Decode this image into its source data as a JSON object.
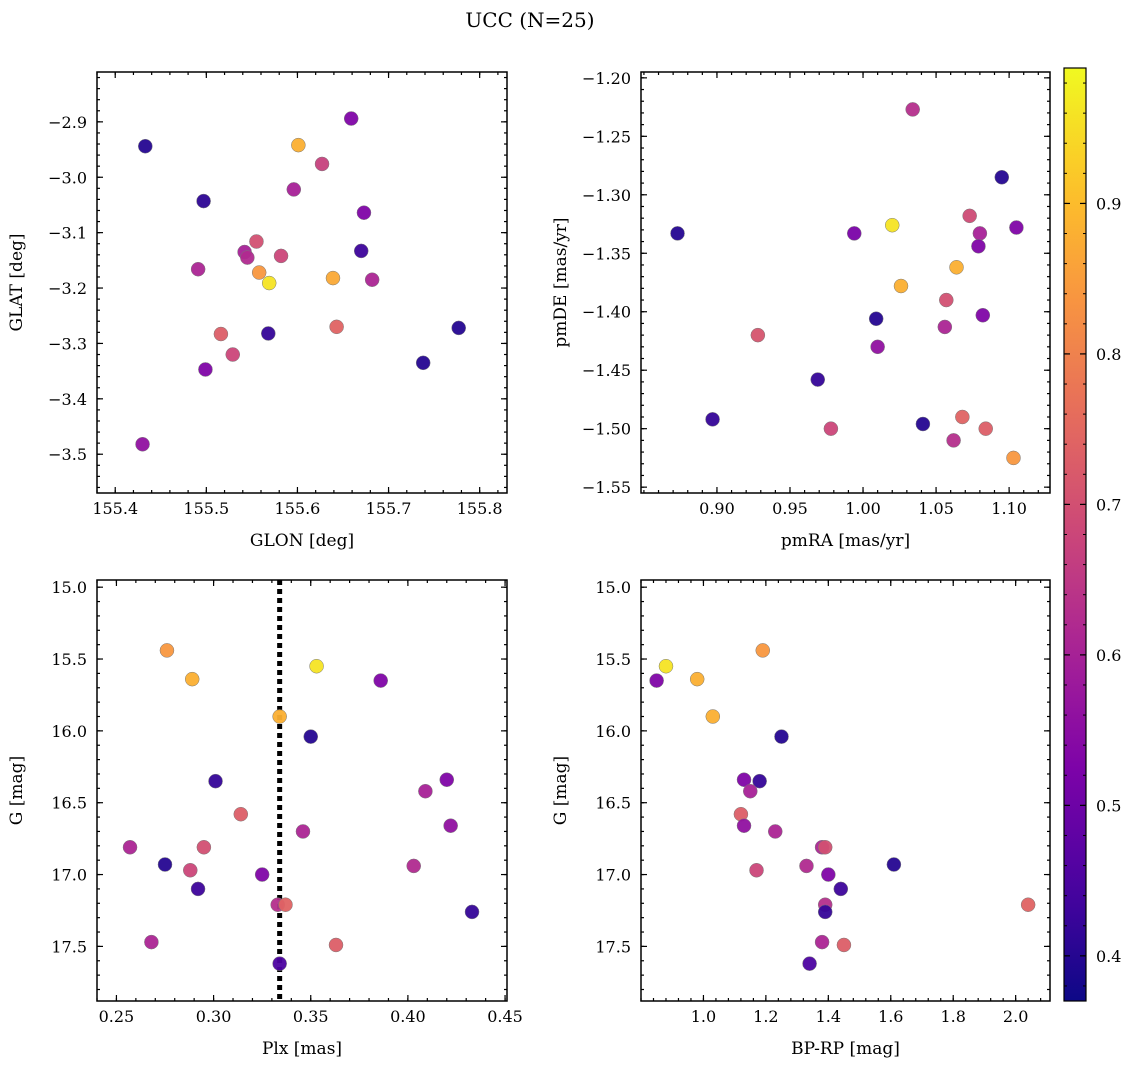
{
  "figure": {
    "title": "UCC (N=25)"
  },
  "colorbar": {
    "cmap": "plasma",
    "range": [
      0.37,
      0.99
    ],
    "ticks": [
      "0.4",
      "0.5",
      "0.6",
      "0.7",
      "0.8",
      "0.9"
    ]
  },
  "chart_data": [
    {
      "type": "scatter",
      "panel": "top-left",
      "xlabel": "GLON [deg]",
      "ylabel": "GLAT [deg]",
      "xlim": [
        155.38,
        155.83
      ],
      "ylim": [
        -3.57,
        -2.81
      ],
      "xticks": [
        "155.4",
        "155.5",
        "155.6",
        "155.7",
        "155.8"
      ],
      "yticks": [
        "-2.9",
        "-3.0",
        "-3.1",
        "-3.2",
        "-3.3",
        "-3.4",
        "-3.5"
      ],
      "points": [
        {
          "x": 155.433,
          "y": -2.944,
          "c": 0.4
        },
        {
          "x": 155.497,
          "y": -3.043,
          "c": 0.41
        },
        {
          "x": 155.659,
          "y": -2.894,
          "c": 0.53
        },
        {
          "x": 155.601,
          "y": -2.942,
          "c": 0.88
        },
        {
          "x": 155.627,
          "y": -2.976,
          "c": 0.67
        },
        {
          "x": 155.596,
          "y": -3.022,
          "c": 0.6
        },
        {
          "x": 155.673,
          "y": -3.064,
          "c": 0.53
        },
        {
          "x": 155.542,
          "y": -3.135,
          "c": 0.6
        },
        {
          "x": 155.545,
          "y": -3.145,
          "c": 0.62
        },
        {
          "x": 155.555,
          "y": -3.116,
          "c": 0.7
        },
        {
          "x": 155.582,
          "y": -3.142,
          "c": 0.68
        },
        {
          "x": 155.67,
          "y": -3.133,
          "c": 0.43
        },
        {
          "x": 155.491,
          "y": -3.166,
          "c": 0.61
        },
        {
          "x": 155.558,
          "y": -3.172,
          "c": 0.84
        },
        {
          "x": 155.569,
          "y": -3.191,
          "c": 0.96
        },
        {
          "x": 155.639,
          "y": -3.182,
          "c": 0.87
        },
        {
          "x": 155.682,
          "y": -3.185,
          "c": 0.61
        },
        {
          "x": 155.516,
          "y": -3.283,
          "c": 0.73
        },
        {
          "x": 155.568,
          "y": -3.282,
          "c": 0.42
        },
        {
          "x": 155.643,
          "y": -3.27,
          "c": 0.74
        },
        {
          "x": 155.777,
          "y": -3.272,
          "c": 0.4
        },
        {
          "x": 155.529,
          "y": -3.32,
          "c": 0.68
        },
        {
          "x": 155.499,
          "y": -3.347,
          "c": 0.53
        },
        {
          "x": 155.738,
          "y": -3.335,
          "c": 0.4
        },
        {
          "x": 155.43,
          "y": -3.482,
          "c": 0.56
        }
      ]
    },
    {
      "type": "scatter",
      "panel": "top-right",
      "xlabel": "pmRA [mas/yr]",
      "ylabel": "pmDE [mas/yr]",
      "xlim": [
        0.848,
        1.128
      ],
      "ylim": [
        -1.555,
        -1.195
      ],
      "xticks": [
        "0.90",
        "0.95",
        "1.00",
        "1.05",
        "1.10"
      ],
      "yticks": [
        "-1.20",
        "-1.25",
        "-1.30",
        "-1.35",
        "-1.40",
        "-1.45",
        "-1.50",
        "-1.55"
      ],
      "points": [
        {
          "x": 1.034,
          "y": -1.227,
          "c": 0.63
        },
        {
          "x": 1.095,
          "y": -1.285,
          "c": 0.4
        },
        {
          "x": 0.873,
          "y": -1.333,
          "c": 0.4
        },
        {
          "x": 1.02,
          "y": -1.326,
          "c": 0.96
        },
        {
          "x": 1.073,
          "y": -1.318,
          "c": 0.69
        },
        {
          "x": 0.994,
          "y": -1.333,
          "c": 0.52
        },
        {
          "x": 1.08,
          "y": -1.333,
          "c": 0.6
        },
        {
          "x": 1.105,
          "y": -1.328,
          "c": 0.53
        },
        {
          "x": 1.079,
          "y": -1.344,
          "c": 0.53
        },
        {
          "x": 1.064,
          "y": -1.362,
          "c": 0.88
        },
        {
          "x": 1.026,
          "y": -1.378,
          "c": 0.88
        },
        {
          "x": 1.057,
          "y": -1.39,
          "c": 0.7
        },
        {
          "x": 1.009,
          "y": -1.406,
          "c": 0.4
        },
        {
          "x": 1.082,
          "y": -1.403,
          "c": 0.53
        },
        {
          "x": 1.056,
          "y": -1.413,
          "c": 0.61
        },
        {
          "x": 0.928,
          "y": -1.42,
          "c": 0.71
        },
        {
          "x": 1.01,
          "y": -1.43,
          "c": 0.56
        },
        {
          "x": 0.969,
          "y": -1.458,
          "c": 0.42
        },
        {
          "x": 0.897,
          "y": -1.492,
          "c": 0.42
        },
        {
          "x": 1.068,
          "y": -1.49,
          "c": 0.74
        },
        {
          "x": 1.041,
          "y": -1.496,
          "c": 0.4
        },
        {
          "x": 0.978,
          "y": -1.5,
          "c": 0.68
        },
        {
          "x": 1.084,
          "y": -1.5,
          "c": 0.73
        },
        {
          "x": 1.062,
          "y": -1.51,
          "c": 0.63
        },
        {
          "x": 1.103,
          "y": -1.525,
          "c": 0.84
        }
      ]
    },
    {
      "type": "scatter",
      "panel": "bottom-left",
      "xlabel": "Plx [mas]",
      "ylabel": "G [mag]",
      "xlim": [
        0.24,
        0.451
      ],
      "ylim": [
        17.88,
        14.95
      ],
      "xticks": [
        "0.25",
        "0.30",
        "0.35",
        "0.40",
        "0.45"
      ],
      "yticks": [
        "15.0",
        "15.5",
        "16.0",
        "16.5",
        "17.0",
        "17.5"
      ],
      "vline": {
        "x": 0.334,
        "style": "dotted",
        "color": "#000000"
      },
      "points": [
        {
          "x": 0.276,
          "y": 15.44,
          "c": 0.84
        },
        {
          "x": 0.289,
          "y": 15.64,
          "c": 0.88
        },
        {
          "x": 0.353,
          "y": 15.55,
          "c": 0.96
        },
        {
          "x": 0.386,
          "y": 15.65,
          "c": 0.53
        },
        {
          "x": 0.334,
          "y": 15.9,
          "c": 0.88
        },
        {
          "x": 0.35,
          "y": 16.04,
          "c": 0.4
        },
        {
          "x": 0.301,
          "y": 16.35,
          "c": 0.42
        },
        {
          "x": 0.42,
          "y": 16.34,
          "c": 0.53
        },
        {
          "x": 0.409,
          "y": 16.42,
          "c": 0.6
        },
        {
          "x": 0.314,
          "y": 16.58,
          "c": 0.73
        },
        {
          "x": 0.422,
          "y": 16.66,
          "c": 0.56
        },
        {
          "x": 0.346,
          "y": 16.7,
          "c": 0.61
        },
        {
          "x": 0.257,
          "y": 16.81,
          "c": 0.61
        },
        {
          "x": 0.295,
          "y": 16.81,
          "c": 0.7
        },
        {
          "x": 0.275,
          "y": 16.93,
          "c": 0.4
        },
        {
          "x": 0.288,
          "y": 16.97,
          "c": 0.68
        },
        {
          "x": 0.403,
          "y": 16.94,
          "c": 0.62
        },
        {
          "x": 0.325,
          "y": 17.0,
          "c": 0.53
        },
        {
          "x": 0.292,
          "y": 17.1,
          "c": 0.43
        },
        {
          "x": 0.333,
          "y": 17.21,
          "c": 0.63
        },
        {
          "x": 0.337,
          "y": 17.21,
          "c": 0.74
        },
        {
          "x": 0.433,
          "y": 17.26,
          "c": 0.42
        },
        {
          "x": 0.268,
          "y": 17.47,
          "c": 0.61
        },
        {
          "x": 0.363,
          "y": 17.49,
          "c": 0.73
        },
        {
          "x": 0.334,
          "y": 17.62,
          "c": 0.45
        }
      ]
    },
    {
      "type": "scatter",
      "panel": "bottom-right",
      "xlabel": "BP-RP [mag]",
      "ylabel": "G [mag]",
      "xlim": [
        0.8,
        2.11
      ],
      "ylim": [
        17.88,
        14.95
      ],
      "xticks": [
        "1.0",
        "1.2",
        "1.4",
        "1.6",
        "1.8",
        "2.0"
      ],
      "yticks": [
        "15.0",
        "15.5",
        "16.0",
        "16.5",
        "17.0",
        "17.5"
      ],
      "points": [
        {
          "x": 0.88,
          "y": 15.55,
          "c": 0.96
        },
        {
          "x": 0.85,
          "y": 15.65,
          "c": 0.53
        },
        {
          "x": 0.98,
          "y": 15.64,
          "c": 0.88
        },
        {
          "x": 1.19,
          "y": 15.44,
          "c": 0.84
        },
        {
          "x": 1.03,
          "y": 15.9,
          "c": 0.88
        },
        {
          "x": 1.25,
          "y": 16.04,
          "c": 0.4
        },
        {
          "x": 1.13,
          "y": 16.34,
          "c": 0.53
        },
        {
          "x": 1.18,
          "y": 16.35,
          "c": 0.42
        },
        {
          "x": 1.15,
          "y": 16.42,
          "c": 0.6
        },
        {
          "x": 1.12,
          "y": 16.58,
          "c": 0.73
        },
        {
          "x": 1.13,
          "y": 16.66,
          "c": 0.56
        },
        {
          "x": 1.23,
          "y": 16.7,
          "c": 0.61
        },
        {
          "x": 1.38,
          "y": 16.81,
          "c": 0.61
        },
        {
          "x": 1.39,
          "y": 16.81,
          "c": 0.7
        },
        {
          "x": 1.61,
          "y": 16.93,
          "c": 0.4
        },
        {
          "x": 1.33,
          "y": 16.94,
          "c": 0.62
        },
        {
          "x": 1.17,
          "y": 16.97,
          "c": 0.68
        },
        {
          "x": 1.4,
          "y": 17.0,
          "c": 0.53
        },
        {
          "x": 1.44,
          "y": 17.1,
          "c": 0.43
        },
        {
          "x": 1.39,
          "y": 17.21,
          "c": 0.63
        },
        {
          "x": 2.04,
          "y": 17.21,
          "c": 0.74
        },
        {
          "x": 1.39,
          "y": 17.26,
          "c": 0.42
        },
        {
          "x": 1.38,
          "y": 17.47,
          "c": 0.61
        },
        {
          "x": 1.45,
          "y": 17.49,
          "c": 0.73
        },
        {
          "x": 1.34,
          "y": 17.62,
          "c": 0.45
        }
      ]
    }
  ]
}
